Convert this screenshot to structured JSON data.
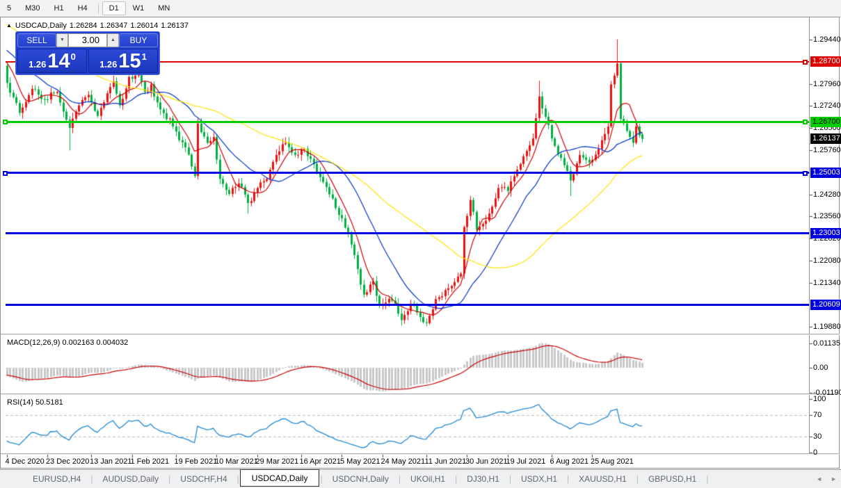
{
  "toolbar": {
    "items": [
      "5",
      "M30",
      "H1",
      "H4",
      "D1",
      "W1",
      "MN"
    ],
    "active": "D1",
    "divider_before": "D1"
  },
  "chart_title": {
    "collapse_icon": "▲",
    "symbol": "USDCAD,Daily",
    "open": "1.26284",
    "high": "1.26347",
    "low": "1.26014",
    "close": "1.26137"
  },
  "trade_panel": {
    "sell_label": "SELL",
    "buy_label": "BUY",
    "volume": "3.00",
    "spin_down_icon": "▼",
    "spin_up_icon": "▲",
    "sell_price": {
      "small": "1.26",
      "big": "14",
      "sup": "0"
    },
    "buy_price": {
      "small": "1.26",
      "big": "15",
      "sup": "1"
    }
  },
  "price_axis": {
    "labels": [
      "1.29440",
      "1.27960",
      "1.27240",
      "1.26500",
      "1.25760",
      "1.24280",
      "1.23560",
      "1.22820",
      "1.22080",
      "1.21340",
      "1.19880"
    ]
  },
  "hlines": [
    {
      "label": "1.28700",
      "price": 1.287,
      "color": "#dd0000",
      "text_color": "#ffffff",
      "thickness": 2,
      "selected": true,
      "left_handle": false
    },
    {
      "label": "1.26700",
      "price": 1.267,
      "color": "#00cc00",
      "text_color": "#000000",
      "thickness": 3,
      "selected": true,
      "left_handle": true
    },
    {
      "label": "1.25003",
      "price": 1.25003,
      "color": "#0000dd",
      "text_color": "#ffffff",
      "thickness": 3,
      "selected": true,
      "left_handle": true
    },
    {
      "label": "1.23003",
      "price": 1.23003,
      "color": "#0000dd",
      "text_color": "#ffffff",
      "thickness": 3,
      "selected": false,
      "left_handle": false
    },
    {
      "label": "1.20609",
      "price": 1.20609,
      "color": "#0000dd",
      "text_color": "#ffffff",
      "thickness": 3,
      "selected": false,
      "left_handle": false
    }
  ],
  "current_price_badge": {
    "label": "1.26137",
    "price": 1.26137,
    "bg": "#000000",
    "text_color": "#ffffff"
  },
  "date_axis": {
    "labels": [
      "4 Dec 2020",
      "23 Dec 2020",
      "13 Jan 2021",
      "1 Feb 2021",
      "19 Feb 2021",
      "10 Mar 2021",
      "29 Mar 2021",
      "16 Apr 2021",
      "5 May 2021",
      "24 May 2021",
      "11 Jun 2021",
      "30 Jun 2021",
      "19 Jul 2021",
      "6 Aug 2021",
      "25 Aug 2021"
    ],
    "tick_indices": [
      0,
      13,
      27,
      40,
      54,
      67,
      80,
      94,
      107,
      120,
      134,
      147,
      160,
      174,
      187
    ]
  },
  "indicators": {
    "macd": {
      "name_label": "MACD(12,26,9)",
      "values_label": "0.002163 0.004032",
      "fast": 12,
      "slow": 26,
      "signal": 9,
      "axis": [
        {
          "label": "0.01135",
          "v": 0.01135
        },
        {
          "label": "0.00",
          "v": 0
        },
        {
          "label": "-0.01190",
          "v": -0.0119
        }
      ],
      "bar_color": "#c8c8c8",
      "line_color": "#cc0000"
    },
    "rsi": {
      "name_label": "RSI(14)",
      "value_label": "50.5181",
      "period": 14,
      "axis": [
        {
          "label": "100",
          "v": 100
        },
        {
          "label": "70",
          "v": 70
        },
        {
          "label": "30",
          "v": 30
        },
        {
          "label": "0",
          "v": 0
        }
      ],
      "levels": [
        70,
        30
      ],
      "line_color": "#1e88d2",
      "level_color": "#b9b9b9"
    }
  },
  "moving_averages": [
    {
      "period": 7,
      "color": "#cc0000"
    },
    {
      "period": 21,
      "color": "#0033cc"
    },
    {
      "period": 55,
      "color": "#ffe400"
    }
  ],
  "chart_data": {
    "type": "candlestick",
    "symbol": "USDCAD",
    "timeframe": "Daily",
    "title": "USDCAD,Daily",
    "ohlc_current": {
      "open": 1.26284,
      "high": 1.26347,
      "low": 1.26014,
      "close": 1.26137
    },
    "x_range": [
      "4 Dec 2020",
      "25 Aug 2021 +"
    ],
    "visible_price_top": 1.301575,
    "visible_price_bottom": 1.196485,
    "up_color": "#ee1111",
    "down_color": "#00b140",
    "bars": 204,
    "prepend_bars": 60,
    "prepend_from": 1.315,
    "prepend_to": 1.287,
    "price_keyframes": [
      [
        0,
        1.28
      ],
      [
        4,
        1.27
      ],
      [
        8,
        1.278
      ],
      [
        12,
        1.2745
      ],
      [
        16,
        1.277
      ],
      [
        20,
        1.265
      ],
      [
        23,
        1.2725
      ],
      [
        26,
        1.276
      ],
      [
        29,
        1.269
      ],
      [
        34,
        1.2805
      ],
      [
        36,
        1.2725
      ],
      [
        39,
        1.282
      ],
      [
        42,
        1.283
      ],
      [
        44,
        1.277
      ],
      [
        46,
        1.2795
      ],
      [
        48,
        1.2735
      ],
      [
        53,
        1.2655
      ],
      [
        57,
        1.2585
      ],
      [
        60,
        1.249
      ],
      [
        61,
        1.2665
      ],
      [
        64,
        1.26
      ],
      [
        66,
        1.262
      ],
      [
        68,
        1.248
      ],
      [
        71,
        1.243
      ],
      [
        74,
        1.2465
      ],
      [
        77,
        1.24
      ],
      [
        80,
        1.245
      ],
      [
        83,
        1.248
      ],
      [
        86,
        1.256
      ],
      [
        89,
        1.26
      ],
      [
        92,
        1.256
      ],
      [
        95,
        1.258
      ],
      [
        98,
        1.253
      ],
      [
        101,
        1.247
      ],
      [
        104,
        1.2415
      ],
      [
        106,
        1.236
      ],
      [
        109,
        1.23
      ],
      [
        112,
        1.218
      ],
      [
        114,
        1.2095
      ],
      [
        117,
        1.214
      ],
      [
        119,
        1.206
      ],
      [
        123,
        1.2075
      ],
      [
        126,
        1.201
      ],
      [
        129,
        1.2065
      ],
      [
        132,
        1.202
      ],
      [
        134,
        1.2
      ],
      [
        137,
        1.208
      ],
      [
        140,
        1.211
      ],
      [
        144,
        1.2155
      ],
      [
        145,
        1.2165
      ],
      [
        146,
        1.232
      ],
      [
        148,
        1.241
      ],
      [
        150,
        1.231
      ],
      [
        154,
        1.2365
      ],
      [
        157,
        1.245
      ],
      [
        160,
        1.244
      ],
      [
        164,
        1.253
      ],
      [
        168,
        1.2615
      ],
      [
        170,
        1.2755
      ],
      [
        171,
        1.2715
      ],
      [
        174,
        1.2615
      ],
      [
        177,
        1.255
      ],
      [
        180,
        1.2475
      ],
      [
        183,
        1.256
      ],
      [
        186,
        1.2535
      ],
      [
        189,
        1.258
      ],
      [
        191,
        1.263
      ],
      [
        192,
        1.2655
      ],
      [
        193,
        1.2795
      ],
      [
        195,
        1.2865
      ],
      [
        196,
        1.268
      ],
      [
        197,
        1.2665
      ],
      [
        198,
        1.264
      ],
      [
        200,
        1.26
      ],
      [
        201,
        1.2655
      ],
      [
        202,
        1.2625
      ],
      [
        203,
        1.26137
      ]
    ],
    "wick_overrides": [
      {
        "i": 20,
        "low": 1.2575
      },
      {
        "i": 42,
        "high": 1.2852
      },
      {
        "i": 77,
        "low": 1.2365
      },
      {
        "i": 126,
        "low": 1.1992
      },
      {
        "i": 134,
        "low": 1.1989
      },
      {
        "i": 170,
        "high": 1.2807
      },
      {
        "i": 180,
        "low": 1.2423
      },
      {
        "i": 195,
        "high": 1.2945
      }
    ],
    "last_bar": {
      "open": 1.26284,
      "high": 1.26347,
      "low": 1.26014,
      "close": 1.26137
    }
  },
  "tabbar": {
    "tabs": [
      "EURUSD,H4",
      "AUDUSD,Daily",
      "USDCHF,H4",
      "USDCAD,Daily",
      "USDCNH,Daily",
      "UKOil,H1",
      "DJ30,H1",
      "USDX,H1",
      "XAUUSD,H1",
      "GBPUSD,H1"
    ],
    "active": "USDCAD,Daily",
    "scroll_left": "◄",
    "scroll_right": "►"
  }
}
